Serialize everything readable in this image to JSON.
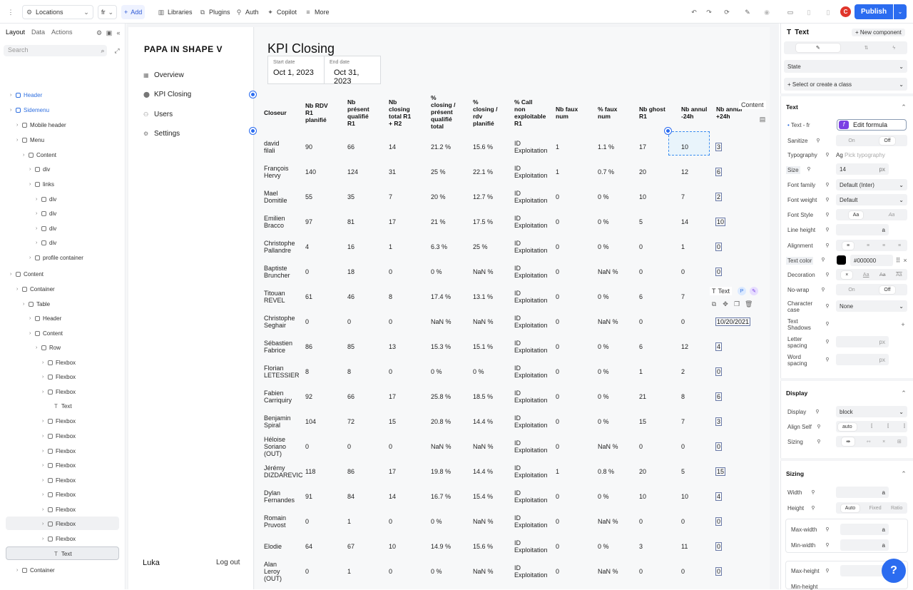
{
  "topbar": {
    "menu_icon": "kebab-icon",
    "locations": "Locations",
    "lang": "fr",
    "add": "Add",
    "libraries": "Libraries",
    "plugins": "Plugins",
    "auth": "Auth",
    "copilot": "Copilot",
    "more": "More",
    "avatar_letter": "C",
    "publish": "Publish"
  },
  "left_panel": {
    "tabs": [
      "Layout",
      "Data",
      "Actions"
    ],
    "search_placeholder": "Search",
    "tree": [
      {
        "label": "Header",
        "indent": 0,
        "blue": true
      },
      {
        "label": "Sidemenu",
        "indent": 0,
        "blue": true
      },
      {
        "label": "Mobile header",
        "indent": 1
      },
      {
        "label": "Menu",
        "indent": 1
      },
      {
        "label": "Content",
        "indent": 2
      },
      {
        "label": "div",
        "indent": 3
      },
      {
        "label": "links",
        "indent": 3
      },
      {
        "label": "div",
        "indent": 4
      },
      {
        "label": "div",
        "indent": 4
      },
      {
        "label": "div",
        "indent": 4
      },
      {
        "label": "div",
        "indent": 4
      },
      {
        "label": "profile container",
        "indent": 3
      },
      {
        "label": "Content",
        "indent": 0
      },
      {
        "label": "Container",
        "indent": 1
      },
      {
        "label": "Table",
        "indent": 2
      },
      {
        "label": "Header",
        "indent": 3
      },
      {
        "label": "Content",
        "indent": 3
      },
      {
        "label": "Row",
        "indent": 4
      },
      {
        "label": "Flexbox",
        "indent": 5
      },
      {
        "label": "Flexbox",
        "indent": 5
      },
      {
        "label": "Flexbox",
        "indent": 5
      },
      {
        "label": "Text",
        "indent": 6,
        "text": true
      },
      {
        "label": "Flexbox",
        "indent": 5
      },
      {
        "label": "Flexbox",
        "indent": 5
      },
      {
        "label": "Flexbox",
        "indent": 5
      },
      {
        "label": "Flexbox",
        "indent": 5
      },
      {
        "label": "Flexbox",
        "indent": 5
      },
      {
        "label": "Flexbox",
        "indent": 5
      },
      {
        "label": "Flexbox",
        "indent": 5
      },
      {
        "label": "Flexbox",
        "indent": 5
      },
      {
        "label": "Flexbox",
        "indent": 5
      },
      {
        "label": "Text",
        "indent": 6,
        "text": true
      },
      {
        "label": "Container",
        "indent": 1
      }
    ]
  },
  "sidemenu": {
    "logo": "PAPA IN SHAPE V",
    "items": [
      "Overview",
      "KPI Closing",
      "Users",
      "Settings"
    ],
    "user": "Luka",
    "logout": "Log out"
  },
  "main": {
    "title": "KPI Closing",
    "start_label": "Start date",
    "start_value": "Oct 1, 2023",
    "end_label": "End date",
    "end_value": "Oct 31,\n2023",
    "headers": [
      "Closeur",
      "Nb RDV\nR1\nplanifié",
      "Nb\nprésent\nqualifié\nR1",
      "Nb\nclosing\ntotal R1\n+ R2",
      "%\nclosing /\nprésent\nqualifié\ntotal",
      "%\nclosing /\nrdv\nplanifié",
      "% Call\nnon\nexploitable\nR1",
      "Nb faux\nnum",
      "% faux\nnum",
      "Nb ghost\nR1",
      "Nb annul\n-24h",
      "Nb annul\n+24h"
    ],
    "rows": [
      [
        "david\nfilali",
        "90",
        "66",
        "14",
        "21.2 %",
        "15.6 %",
        "ID\nExploitation",
        "1",
        "1.1 %",
        "17",
        "10",
        "3"
      ],
      [
        "François\nHervy",
        "140",
        "124",
        "31",
        "25 %",
        "22.1 %",
        "ID\nExploitation",
        "1",
        "0.7 %",
        "20",
        "12",
        "6"
      ],
      [
        "Mael\nDomitile",
        "55",
        "35",
        "7",
        "20 %",
        "12.7 %",
        "ID\nExploitation",
        "0",
        "0 %",
        "10",
        "7",
        "2"
      ],
      [
        "Emilien\nBracco",
        "97",
        "81",
        "17",
        "21 %",
        "17.5 %",
        "ID\nExploitation",
        "0",
        "0 %",
        "5",
        "14",
        "10"
      ],
      [
        "Christophe\nPallandre",
        "4",
        "16",
        "1",
        "6.3 %",
        "25 %",
        "ID\nExploitation",
        "0",
        "0 %",
        "0",
        "1",
        "0"
      ],
      [
        "Baptiste\nBruncher",
        "0",
        "18",
        "0",
        "0 %",
        "NaN %",
        "ID\nExploitation",
        "0",
        "NaN %",
        "0",
        "0",
        "0"
      ],
      [
        "Titouan\nREVEL",
        "61",
        "46",
        "8",
        "17.4 %",
        "13.1 %",
        "ID\nExploitation",
        "0",
        "0 %",
        "6",
        "7",
        ""
      ],
      [
        "Christophe\nSeghair",
        "0",
        "0",
        "0",
        "NaN %",
        "NaN %",
        "ID\nExploitation",
        "0",
        "NaN %",
        "0",
        "0",
        "10/20/2021"
      ],
      [
        "Sébastien\nFabrice",
        "86",
        "85",
        "13",
        "15.3 %",
        "15.1 %",
        "ID\nExploitation",
        "0",
        "0 %",
        "6",
        "12",
        "4"
      ],
      [
        "Florian\nLETESSIER",
        "8",
        "8",
        "0",
        "0 %",
        "0 %",
        "ID\nExploitation",
        "0",
        "0 %",
        "1",
        "2",
        "0"
      ],
      [
        "Fabien\nCarriquiry",
        "92",
        "66",
        "17",
        "25.8 %",
        "18.5 %",
        "ID\nExploitation",
        "0",
        "0 %",
        "21",
        "8",
        "6"
      ],
      [
        "Benjamin\nSpiral",
        "104",
        "72",
        "15",
        "20.8 %",
        "14.4 %",
        "ID\nExploitation",
        "0",
        "0 %",
        "15",
        "7",
        "3"
      ],
      [
        "Héloise\nSoriano\n(OUT)",
        "0",
        "0",
        "0",
        "NaN %",
        "NaN %",
        "ID\nExploitation",
        "0",
        "NaN %",
        "0",
        "0",
        "0"
      ],
      [
        "Jérémy\nDIZDAREVIC",
        "118",
        "86",
        "17",
        "19.8 %",
        "14.4 %",
        "ID\nExploitation",
        "1",
        "0.8 %",
        "20",
        "5",
        "15"
      ],
      [
        "Dylan\nFernandes",
        "91",
        "84",
        "14",
        "16.7 %",
        "15.4 %",
        "ID\nExploitation",
        "0",
        "0 %",
        "10",
        "10",
        "4"
      ],
      [
        "Romain\nPruvost",
        "0",
        "1",
        "0",
        "0 %",
        "NaN %",
        "ID\nExploitation",
        "0",
        "NaN %",
        "0",
        "0",
        "0"
      ],
      [
        "Elodie",
        "64",
        "67",
        "10",
        "14.9 %",
        "15.6 %",
        "ID\nExploitation",
        "0",
        "0 %",
        "3",
        "11",
        "0"
      ],
      [
        "Alan\nLeroy\n(OUT)",
        "0",
        "1",
        "0",
        "0 %",
        "NaN %",
        "ID\nExploitation",
        "0",
        "NaN %",
        "0",
        "0",
        "0"
      ]
    ],
    "content_tag": "Content",
    "text_tag": "Text",
    "p_badge": "P"
  },
  "right_panel": {
    "element": "Text",
    "new_component": "New component",
    "state": "State",
    "class_placeholder": "Select or create a class",
    "text_section": "Text",
    "text_fr": "Text - fr",
    "edit_formula": "Edit formula",
    "sanitize": "Sanitize",
    "on": "On",
    "off": "Off",
    "typography": "Typography",
    "pick_typography": "Pick typography",
    "size": "Size",
    "size_value": "14",
    "px": "px",
    "font_family": "Font family",
    "font_family_value": "Default (Inter)",
    "font_weight": "Font weight",
    "font_weight_value": "Default",
    "font_style": "Font Style",
    "line_height": "Line height",
    "a": "a",
    "alignment": "Alignment",
    "text_color": "Text color",
    "text_color_value": "#000000",
    "decoration": "Decoration",
    "no_wrap": "No-wrap",
    "character_case": "Character case",
    "none": "None",
    "text_shadows": "Text Shadows",
    "letter_spacing": "Letter spacing",
    "word_spacing": "Word spacing",
    "display_section": "Display",
    "display": "Display",
    "display_value": "block",
    "align_self": "Align Self",
    "auto": "auto",
    "sizing": "Sizing",
    "sizing_section": "Sizing",
    "width": "Width",
    "height": "Height",
    "auto_cap": "Auto",
    "fixed": "Fixed",
    "ratio": "Ratio",
    "max_width": "Max-width",
    "min_width": "Min-width",
    "max_height": "Max-height",
    "min_height": "Min-height",
    "text_color_hex": "#000000",
    "publish_color": "#2b6cf0"
  }
}
